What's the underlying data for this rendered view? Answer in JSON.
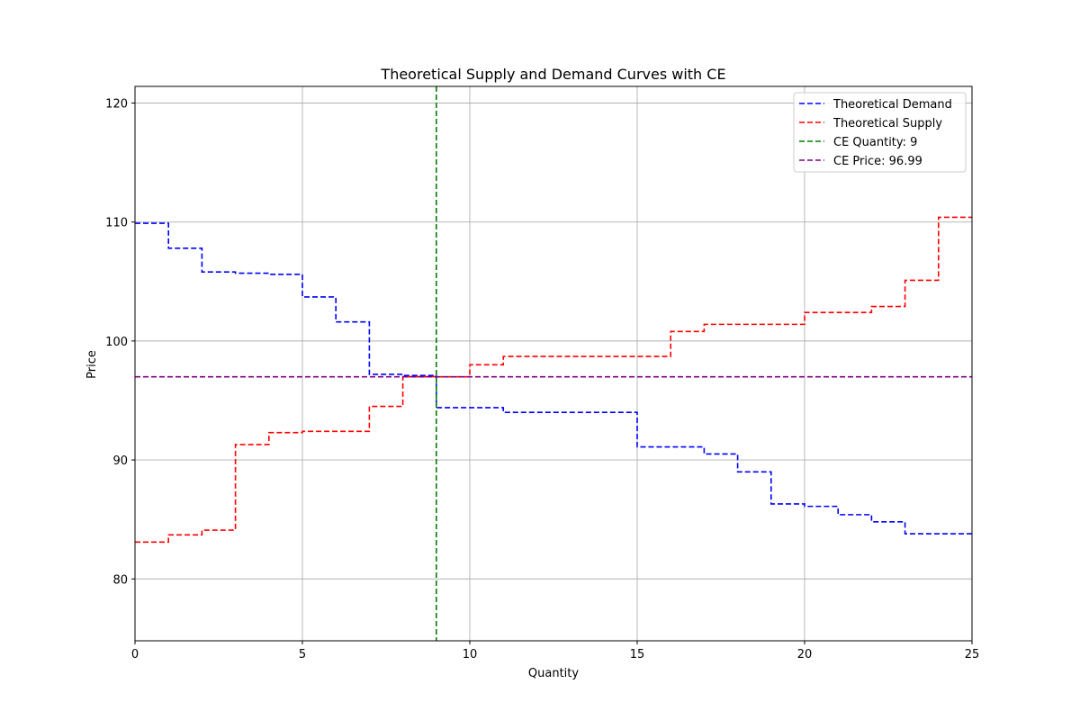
{
  "chart_data": {
    "type": "line",
    "title": "Theoretical Supply and Demand Curves with CE",
    "xlabel": "Quantity",
    "ylabel": "Price",
    "xlim": [
      0,
      25
    ],
    "ylim": [
      74.8,
      121.4
    ],
    "xticks": [
      0,
      5,
      10,
      15,
      20,
      25
    ],
    "yticks": [
      80,
      90,
      100,
      110,
      120
    ],
    "grid": true,
    "legend_position": "top-right",
    "series": [
      {
        "name": "Theoretical Demand",
        "style": "dashed-step",
        "color": "#0000ff",
        "x": [
          0,
          1,
          2,
          3,
          4,
          5,
          6,
          7,
          8,
          9,
          10,
          11,
          12,
          13,
          14,
          15,
          16,
          17,
          18,
          19,
          20,
          21,
          22,
          23,
          24,
          25
        ],
        "values": [
          109.9,
          107.8,
          105.8,
          105.7,
          105.6,
          103.7,
          101.6,
          97.2,
          97.1,
          94.4,
          94.4,
          94.0,
          94.0,
          94.0,
          94.0,
          91.1,
          91.1,
          90.5,
          89.0,
          86.3,
          86.1,
          85.4,
          84.8,
          83.8,
          83.8,
          83.8
        ]
      },
      {
        "name": "Theoretical Supply",
        "style": "dashed-step",
        "color": "#ff0000",
        "x": [
          0,
          1,
          2,
          3,
          4,
          5,
          6,
          7,
          8,
          9,
          10,
          11,
          12,
          13,
          14,
          15,
          16,
          17,
          18,
          19,
          20,
          21,
          22,
          23,
          24,
          25
        ],
        "values": [
          83.1,
          83.7,
          84.1,
          91.3,
          92.3,
          92.4,
          92.4,
          94.5,
          97.0,
          96.99,
          98.0,
          98.7,
          98.7,
          98.7,
          98.7,
          98.7,
          100.8,
          101.4,
          101.4,
          101.4,
          102.4,
          102.4,
          102.9,
          105.1,
          110.4,
          110.4
        ]
      },
      {
        "name": "CE Quantity: 9",
        "style": "dashed-vline",
        "color": "#008000",
        "x_value": 9
      },
      {
        "name": "CE Price: 96.99",
        "style": "dashed-hline",
        "color": "#800080",
        "y_value": 96.99
      }
    ]
  }
}
